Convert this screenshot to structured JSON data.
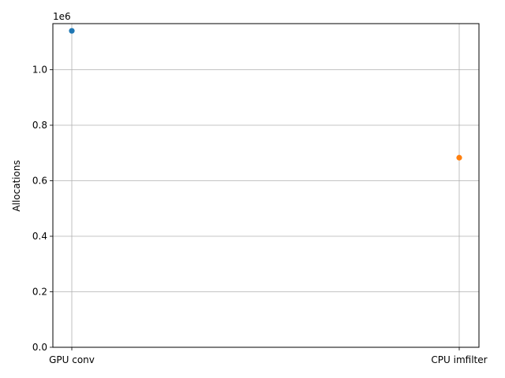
{
  "chart_data": {
    "type": "scatter",
    "categories": [
      "GPU conv",
      "CPU imfilter"
    ],
    "series": [
      {
        "category": "GPU conv",
        "value": 1140000,
        "color": "#1f77b4"
      },
      {
        "category": "CPU imfilter",
        "value": 683000,
        "color": "#ff7f0e"
      }
    ],
    "ylabel": "Allocations",
    "y_offset_label": "1e6",
    "ylim": [
      0,
      1166000
    ],
    "y_ticks": [
      0,
      200000,
      400000,
      600000,
      800000,
      1000000
    ],
    "y_tick_labels": [
      "0.0",
      "0.2",
      "0.4",
      "0.6",
      "0.8",
      "1.0"
    ],
    "grid": true
  }
}
